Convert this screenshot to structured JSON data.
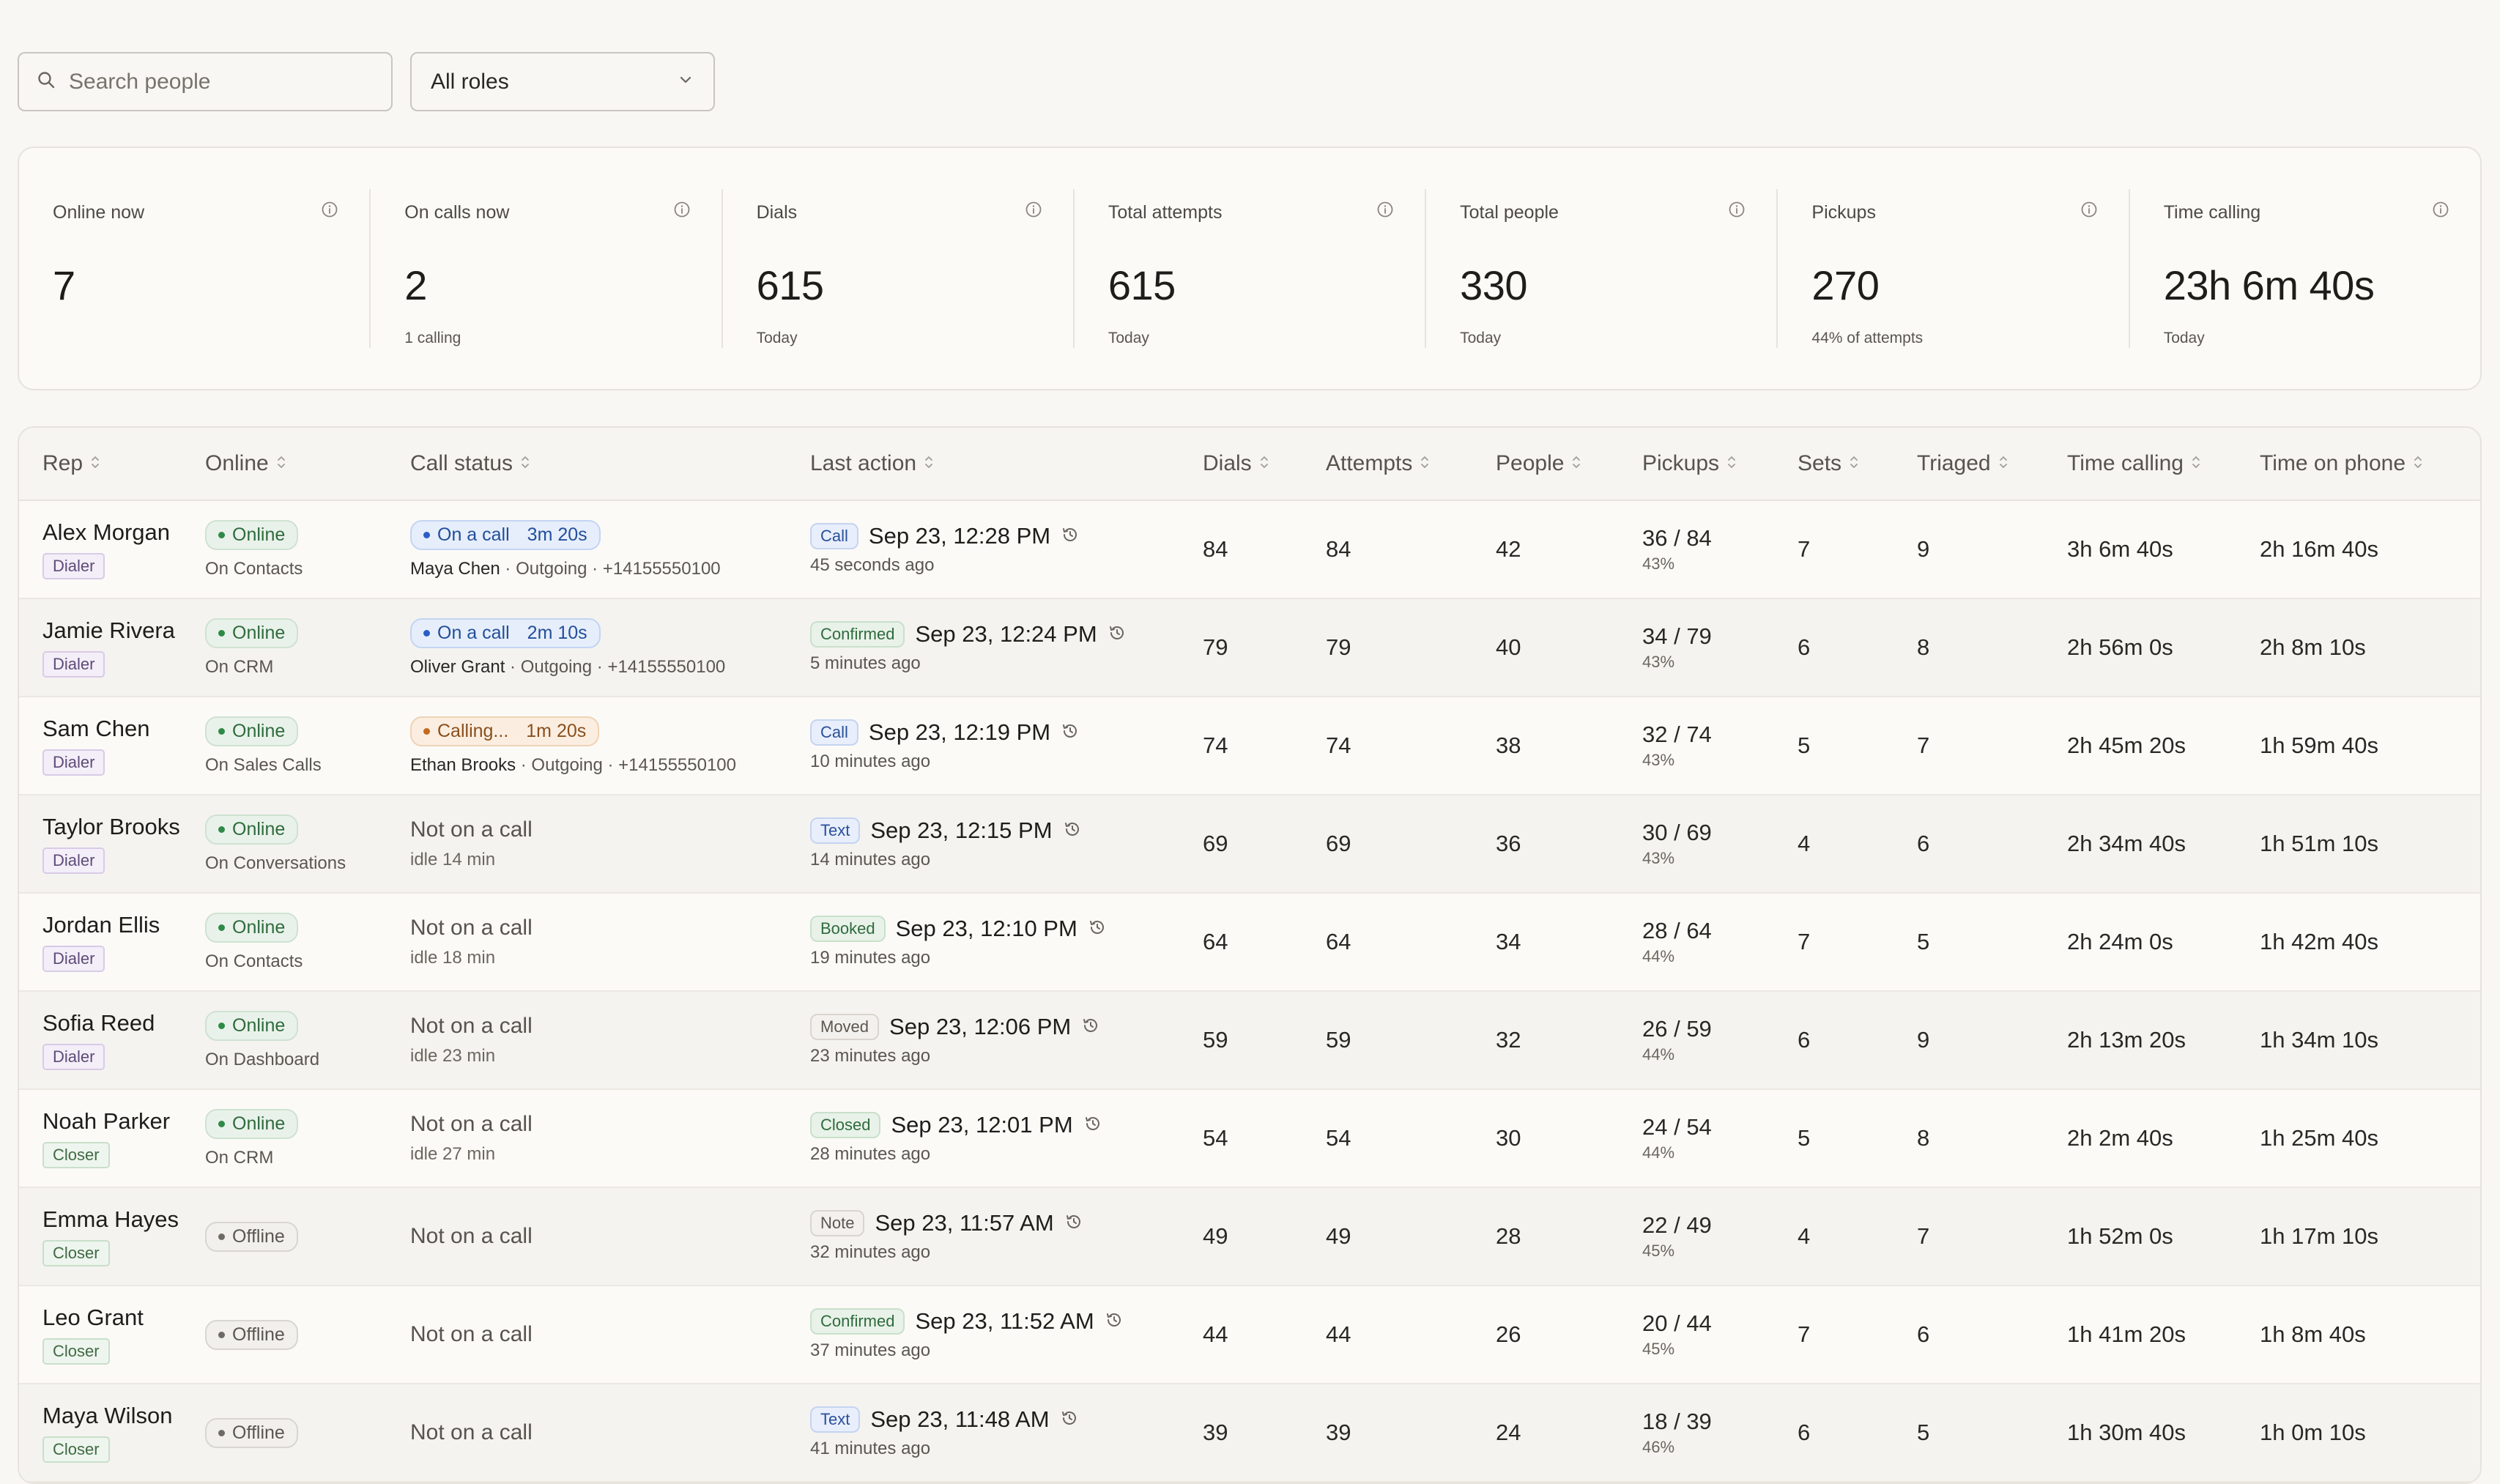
{
  "search": {
    "placeholder": "Search people"
  },
  "role_filter": {
    "value": "All roles"
  },
  "stats": [
    {
      "label": "Online now",
      "value": "7",
      "sub": ""
    },
    {
      "label": "On calls now",
      "value": "2",
      "sub": "1 calling"
    },
    {
      "label": "Dials",
      "value": "615",
      "sub": "Today"
    },
    {
      "label": "Total attempts",
      "value": "615",
      "sub": "Today"
    },
    {
      "label": "Total people",
      "value": "330",
      "sub": "Today"
    },
    {
      "label": "Pickups",
      "value": "270",
      "sub": "44% of attempts"
    },
    {
      "label": "Time calling",
      "value": "23h 6m 40s",
      "sub": "Today"
    }
  ],
  "table": {
    "headers": {
      "rep": "Rep",
      "online": "Online",
      "call_status": "Call status",
      "last_action": "Last action",
      "dials": "Dials",
      "attempts": "Attempts",
      "people": "People",
      "pickups": "Pickups",
      "sets": "Sets",
      "triaged": "Triaged",
      "time_calling": "Time calling",
      "time_on_phone": "Time on phone"
    },
    "rows": [
      {
        "name": "Alex Morgan",
        "role": "Dialer",
        "online": "Online",
        "location": "On Contacts",
        "call_pill": "On a call",
        "call_timer": "3m 20s",
        "call_contact": "Maya Chen",
        "call_detail": " · Outgoing · +14155550100",
        "tag": "Call",
        "action_time": "Sep 23, 12:28 PM",
        "ago": "45 seconds ago",
        "dials": "84",
        "attempts": "84",
        "people": "42",
        "pickups": "36 / 84",
        "pickups_pct": "43%",
        "sets": "7",
        "triaged": "9",
        "time_calling": "3h 6m 40s",
        "time_on_phone": "2h 16m 40s"
      },
      {
        "name": "Jamie Rivera",
        "role": "Dialer",
        "online": "Online",
        "location": "On CRM",
        "call_pill": "On a call",
        "call_timer": "2m 10s",
        "call_contact": "Oliver Grant",
        "call_detail": " · Outgoing · +14155550100",
        "tag": "Confirmed",
        "action_time": "Sep 23, 12:24 PM",
        "ago": "5 minutes ago",
        "dials": "79",
        "attempts": "79",
        "people": "40",
        "pickups": "34 / 79",
        "pickups_pct": "43%",
        "sets": "6",
        "triaged": "8",
        "time_calling": "2h 56m 0s",
        "time_on_phone": "2h 8m 10s"
      },
      {
        "name": "Sam Chen",
        "role": "Dialer",
        "online": "Online",
        "location": "On Sales Calls",
        "call_pill": "Calling...",
        "call_timer": "1m 20s",
        "call_contact": "Ethan Brooks",
        "call_detail": " · Outgoing · +14155550100",
        "tag": "Call",
        "action_time": "Sep 23, 12:19 PM",
        "ago": "10 minutes ago",
        "dials": "74",
        "attempts": "74",
        "people": "38",
        "pickups": "32 / 74",
        "pickups_pct": "43%",
        "sets": "5",
        "triaged": "7",
        "time_calling": "2h 45m 20s",
        "time_on_phone": "1h 59m 40s"
      },
      {
        "name": "Taylor Brooks",
        "role": "Dialer",
        "online": "Online",
        "location": "On Conversations",
        "not_call": "Not on a call",
        "idle": "idle 14 min",
        "tag": "Text",
        "action_time": "Sep 23, 12:15 PM",
        "ago": "14 minutes ago",
        "dials": "69",
        "attempts": "69",
        "people": "36",
        "pickups": "30 / 69",
        "pickups_pct": "43%",
        "sets": "4",
        "triaged": "6",
        "time_calling": "2h 34m 40s",
        "time_on_phone": "1h 51m 10s"
      },
      {
        "name": "Jordan Ellis",
        "role": "Dialer",
        "online": "Online",
        "location": "On Contacts",
        "not_call": "Not on a call",
        "idle": "idle 18 min",
        "tag": "Booked",
        "action_time": "Sep 23, 12:10 PM",
        "ago": "19 minutes ago",
        "dials": "64",
        "attempts": "64",
        "people": "34",
        "pickups": "28 / 64",
        "pickups_pct": "44%",
        "sets": "7",
        "triaged": "5",
        "time_calling": "2h 24m 0s",
        "time_on_phone": "1h 42m 40s"
      },
      {
        "name": "Sofia Reed",
        "role": "Dialer",
        "online": "Online",
        "location": "On Dashboard",
        "not_call": "Not on a call",
        "idle": "idle 23 min",
        "tag": "Moved",
        "action_time": "Sep 23, 12:06 PM",
        "ago": "23 minutes ago",
        "dials": "59",
        "attempts": "59",
        "people": "32",
        "pickups": "26 / 59",
        "pickups_pct": "44%",
        "sets": "6",
        "triaged": "9",
        "time_calling": "2h 13m 20s",
        "time_on_phone": "1h 34m 10s"
      },
      {
        "name": "Noah Parker",
        "role": "Closer",
        "online": "Online",
        "location": "On CRM",
        "not_call": "Not on a call",
        "idle": "idle 27 min",
        "tag": "Closed",
        "action_time": "Sep 23, 12:01 PM",
        "ago": "28 minutes ago",
        "dials": "54",
        "attempts": "54",
        "people": "30",
        "pickups": "24 / 54",
        "pickups_pct": "44%",
        "sets": "5",
        "triaged": "8",
        "time_calling": "2h 2m 40s",
        "time_on_phone": "1h 25m 40s"
      },
      {
        "name": "Emma Hayes",
        "role": "Closer",
        "online": "Offline",
        "location": "",
        "not_call": "Not on a call",
        "idle": "",
        "tag": "Note",
        "action_time": "Sep 23, 11:57 AM",
        "ago": "32 minutes ago",
        "dials": "49",
        "attempts": "49",
        "people": "28",
        "pickups": "22 / 49",
        "pickups_pct": "45%",
        "sets": "4",
        "triaged": "7",
        "time_calling": "1h 52m 0s",
        "time_on_phone": "1h 17m 10s"
      },
      {
        "name": "Leo Grant",
        "role": "Closer",
        "online": "Offline",
        "location": "",
        "not_call": "Not on a call",
        "idle": "",
        "tag": "Confirmed",
        "action_time": "Sep 23, 11:52 AM",
        "ago": "37 minutes ago",
        "dials": "44",
        "attempts": "44",
        "people": "26",
        "pickups": "20 / 44",
        "pickups_pct": "45%",
        "sets": "7",
        "triaged": "6",
        "time_calling": "1h 41m 20s",
        "time_on_phone": "1h 8m 40s"
      },
      {
        "name": "Maya Wilson",
        "role": "Closer",
        "online": "Offline",
        "location": "",
        "not_call": "Not on a call",
        "idle": "",
        "tag": "Text",
        "action_time": "Sep 23, 11:48 AM",
        "ago": "41 minutes ago",
        "dials": "39",
        "attempts": "39",
        "people": "24",
        "pickups": "18 / 39",
        "pickups_pct": "46%",
        "sets": "6",
        "triaged": "5",
        "time_calling": "1h 30m 40s",
        "time_on_phone": "1h 0m 10s"
      }
    ]
  }
}
